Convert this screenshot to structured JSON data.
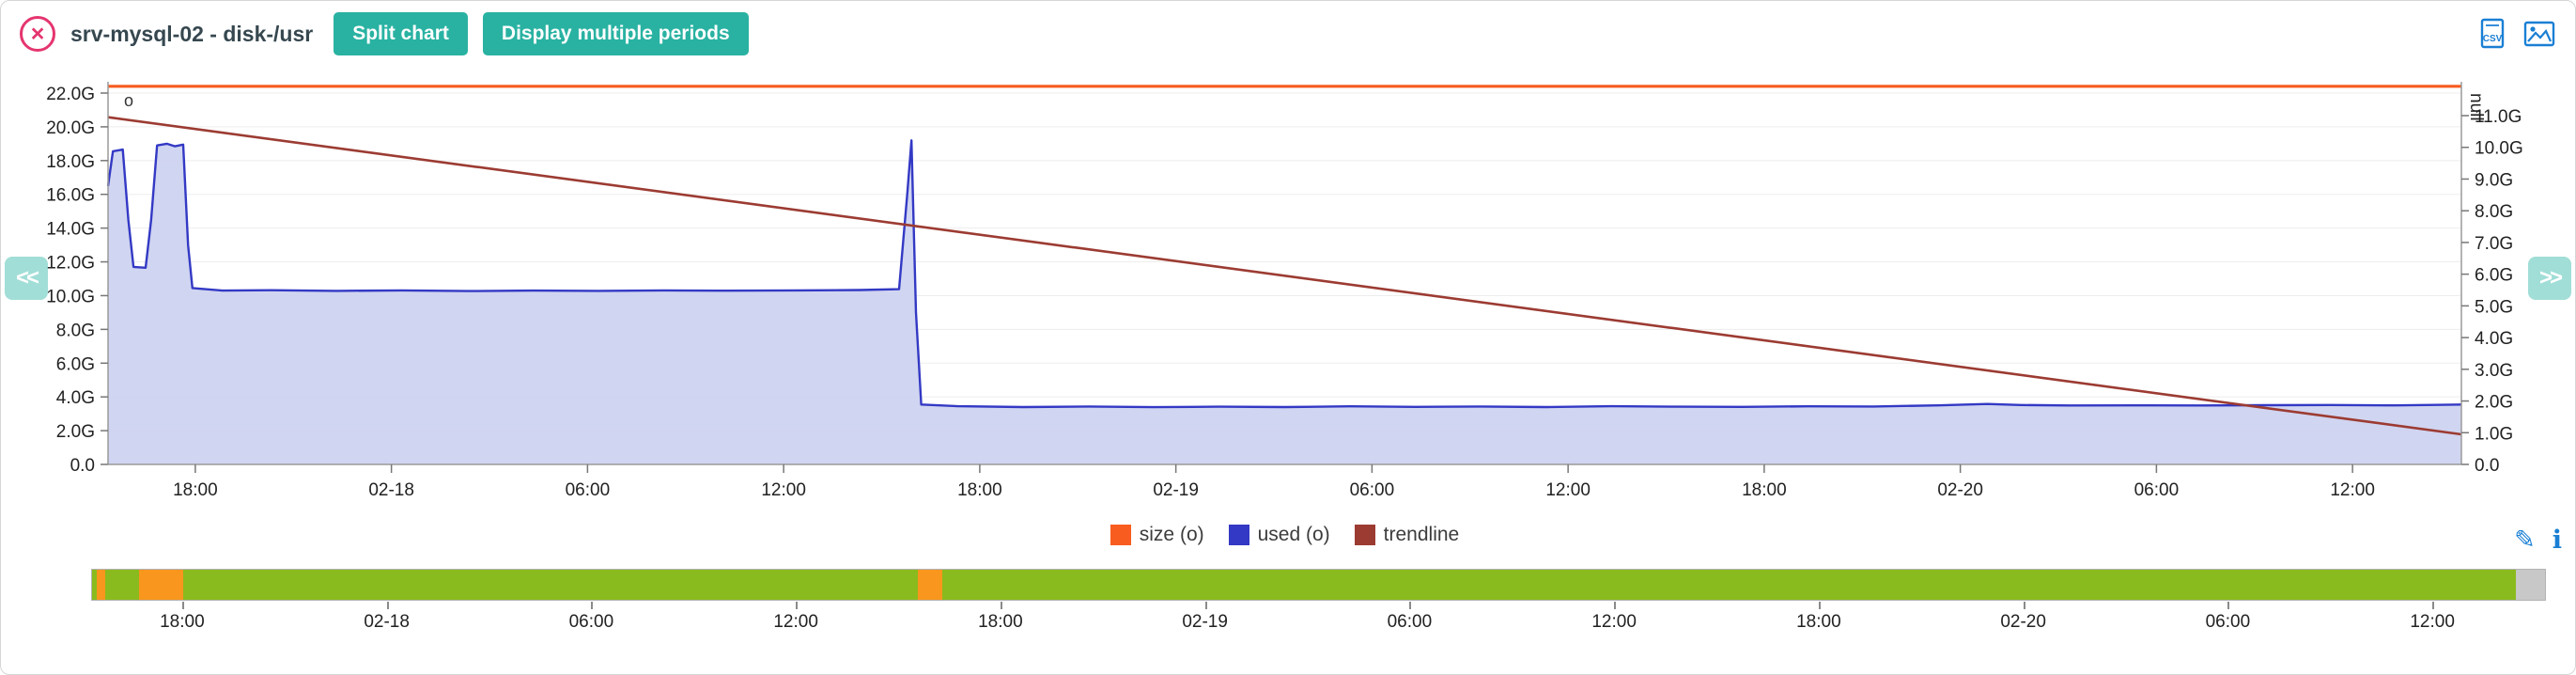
{
  "header": {
    "close_glyph": "×",
    "title": "srv-mysql-02 - disk-/usr",
    "split_chart_button": "Split chart",
    "multi_periods_button": "Display multiple periods",
    "csv_icon_text": "CSV"
  },
  "nav": {
    "prev_label": "<<",
    "next_label": ">>"
  },
  "legend": {
    "items": [
      {
        "label": "size (o)",
        "color": "#f85c1f"
      },
      {
        "label": "used (o)",
        "color": "#3339c4"
      },
      {
        "label": "trendline",
        "color": "#9c3b32"
      }
    ]
  },
  "icons": {
    "edit_glyph": "✎",
    "info_glyph": "ℹ"
  },
  "chart_data": {
    "type": "area",
    "time_span_hours": 72,
    "x_ticks": [
      {
        "label": "18:00",
        "t": 2.67
      },
      {
        "label": "02-18",
        "t": 8.67
      },
      {
        "label": "06:00",
        "t": 14.67
      },
      {
        "label": "12:00",
        "t": 20.67
      },
      {
        "label": "18:00",
        "t": 26.67
      },
      {
        "label": "02-19",
        "t": 32.67
      },
      {
        "label": "06:00",
        "t": 38.67
      },
      {
        "label": "12:00",
        "t": 44.67
      },
      {
        "label": "18:00",
        "t": 50.67
      },
      {
        "label": "02-20",
        "t": 56.67
      },
      {
        "label": "06:00",
        "t": 62.67
      },
      {
        "label": "12:00",
        "t": 68.67
      }
    ],
    "left_axis": {
      "max": 22,
      "ticks": [
        {
          "label": "22.0G",
          "g": 22
        },
        {
          "label": "20.0G",
          "g": 20
        },
        {
          "label": "18.0G",
          "g": 18
        },
        {
          "label": "16.0G",
          "g": 16
        },
        {
          "label": "14.0G",
          "g": 14
        },
        {
          "label": "12.0G",
          "g": 12
        },
        {
          "label": "10.0G",
          "g": 10
        },
        {
          "label": "8.0G",
          "g": 8
        },
        {
          "label": "6.0G",
          "g": 6
        },
        {
          "label": "4.0G",
          "g": 4
        },
        {
          "label": "2.0G",
          "g": 2
        },
        {
          "label": "0.0",
          "g": 0
        }
      ]
    },
    "right_axis": {
      "max": 11,
      "title": "null",
      "ticks": [
        {
          "label": "11.0G",
          "g": 11
        },
        {
          "label": "10.0G",
          "g": 10
        },
        {
          "label": "9.0G",
          "g": 9
        },
        {
          "label": "8.0G",
          "g": 8
        },
        {
          "label": "7.0G",
          "g": 7
        },
        {
          "label": "6.0G",
          "g": 6
        },
        {
          "label": "5.0G",
          "g": 5
        },
        {
          "label": "4.0G",
          "g": 4
        },
        {
          "label": "3.0G",
          "g": 3
        },
        {
          "label": "2.0G",
          "g": 2
        },
        {
          "label": "1.0G",
          "g": 1
        },
        {
          "label": "0.0",
          "g": 0
        }
      ]
    },
    "point_marker": "o",
    "series": [
      {
        "name": "size (o)",
        "kind": "line",
        "axis": "left",
        "color": "#f85c1f",
        "width": 3.2,
        "points": [
          [
            0,
            22.4
          ],
          [
            72,
            22.4
          ]
        ]
      },
      {
        "name": "used (o)",
        "kind": "area",
        "axis": "left",
        "color": "#3339c4",
        "fill": "#ccd1f0",
        "width": 2.4,
        "points": [
          [
            0,
            16.5
          ],
          [
            0.15,
            18.55
          ],
          [
            0.45,
            18.65
          ],
          [
            0.62,
            14.5
          ],
          [
            0.78,
            11.7
          ],
          [
            1.15,
            11.65
          ],
          [
            1.32,
            14.5
          ],
          [
            1.5,
            18.9
          ],
          [
            1.8,
            19.0
          ],
          [
            2.05,
            18.85
          ],
          [
            2.3,
            18.95
          ],
          [
            2.45,
            13.0
          ],
          [
            2.58,
            10.45
          ],
          [
            3.5,
            10.3
          ],
          [
            5,
            10.32
          ],
          [
            7,
            10.28
          ],
          [
            9,
            10.31
          ],
          [
            11,
            10.27
          ],
          [
            13,
            10.3
          ],
          [
            15,
            10.28
          ],
          [
            17,
            10.31
          ],
          [
            19,
            10.29
          ],
          [
            21,
            10.31
          ],
          [
            23,
            10.33
          ],
          [
            24.2,
            10.38
          ],
          [
            24.45,
            16.0
          ],
          [
            24.58,
            19.2
          ],
          [
            24.72,
            9.0
          ],
          [
            24.88,
            3.55
          ],
          [
            26,
            3.45
          ],
          [
            28,
            3.4
          ],
          [
            30,
            3.43
          ],
          [
            32,
            3.39
          ],
          [
            34,
            3.42
          ],
          [
            36,
            3.4
          ],
          [
            38,
            3.44
          ],
          [
            40,
            3.41
          ],
          [
            42,
            3.43
          ],
          [
            44,
            3.4
          ],
          [
            46,
            3.45
          ],
          [
            48,
            3.42
          ],
          [
            50,
            3.41
          ],
          [
            52,
            3.44
          ],
          [
            54,
            3.43
          ],
          [
            56,
            3.5
          ],
          [
            57.5,
            3.58
          ],
          [
            58.5,
            3.52
          ],
          [
            60,
            3.49
          ],
          [
            62,
            3.5
          ],
          [
            64,
            3.49
          ],
          [
            66,
            3.51
          ],
          [
            68,
            3.52
          ],
          [
            70,
            3.5
          ],
          [
            71.5,
            3.53
          ],
          [
            72,
            3.55
          ]
        ]
      },
      {
        "name": "trendline",
        "kind": "line",
        "axis": "right",
        "color": "#9c3b32",
        "width": 2.6,
        "points": [
          [
            0,
            10.95
          ],
          [
            72,
            0.95
          ]
        ]
      }
    ]
  },
  "timeline": {
    "status_colors": {
      "ok": "#8abb1e",
      "warning": "#f8961d",
      "unknown": "#c8c8c8"
    },
    "segments": [
      {
        "from": 0.0,
        "to": 0.002,
        "status": "ok"
      },
      {
        "from": 0.002,
        "to": 0.0055,
        "status": "warning"
      },
      {
        "from": 0.0055,
        "to": 0.019,
        "status": "ok"
      },
      {
        "from": 0.019,
        "to": 0.037,
        "status": "warning"
      },
      {
        "from": 0.037,
        "to": 0.3365,
        "status": "ok"
      },
      {
        "from": 0.3365,
        "to": 0.3465,
        "status": "warning"
      },
      {
        "from": 0.3465,
        "to": 0.988,
        "status": "ok"
      },
      {
        "from": 0.988,
        "to": 1.0,
        "status": "unknown"
      }
    ]
  }
}
